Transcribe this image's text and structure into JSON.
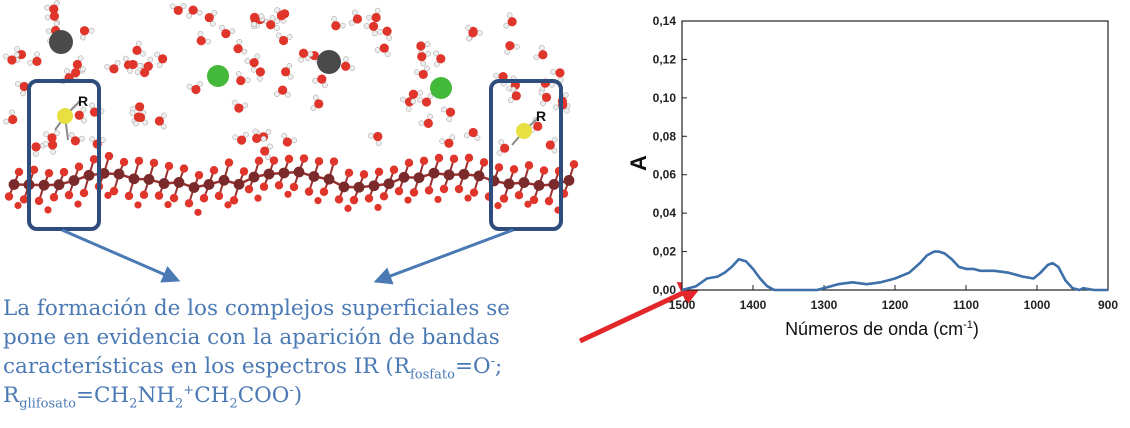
{
  "molecule": {
    "r_label": "R"
  },
  "caption": {
    "line1": "La formación de los complejos superficiales se",
    "line2": "pone en evidencia con la aparición de bandas",
    "line3_text": "características en los espectros IR  (R",
    "sub_fosfato": "fosfato",
    "eq_o": "=O",
    "minus1": "-",
    "semicolon": ";",
    "r_glif": "R",
    "sub_glifosato": "glifosato",
    "eq_ch2nh": "=CH",
    "sub_2a": "2",
    "nh": "NH",
    "sub_2b": "2",
    "plus": "+",
    "ch": "CH",
    "sub_2c": "2",
    "coo": "COO",
    "minus2": "-",
    "close": ")"
  },
  "chart_data": {
    "type": "line",
    "xlabel": "Números de onda (cm-1)",
    "xlabel_main": "Números de onda (cm",
    "xlabel_sup": "-1",
    "xlabel_close": ")",
    "ylabel": "A",
    "xlim": [
      1500,
      900
    ],
    "ylim": [
      0,
      0.14
    ],
    "x_ticks": [
      1500,
      1400,
      1300,
      1200,
      1100,
      1000,
      900
    ],
    "y_ticks": [
      "0,00",
      "0,02",
      "0,04",
      "0,06",
      "0,08",
      "0,10",
      "0,12",
      "0,14"
    ],
    "series": [
      {
        "color": "#3d6fa8",
        "x": [
          1500,
          1480,
          1465,
          1450,
          1440,
          1430,
          1420,
          1410,
          1400,
          1390,
          1380,
          1370,
          1360,
          1350,
          1330,
          1310,
          1300,
          1280,
          1260,
          1240,
          1220,
          1200,
          1180,
          1165,
          1155,
          1145,
          1138,
          1130,
          1120,
          1110,
          1100,
          1090,
          1080,
          1060,
          1040,
          1020,
          1005,
          995,
          985,
          978,
          970,
          960,
          950,
          940,
          935,
          920,
          900
        ],
        "y": [
          0.0,
          0.002,
          0.006,
          0.007,
          0.009,
          0.012,
          0.016,
          0.015,
          0.011,
          0.006,
          0.002,
          0.0,
          0.0,
          0.0,
          0.0,
          0.0,
          0.001,
          0.003,
          0.004,
          0.003,
          0.004,
          0.006,
          0.009,
          0.014,
          0.018,
          0.02,
          0.02,
          0.019,
          0.016,
          0.012,
          0.011,
          0.011,
          0.01,
          0.01,
          0.009,
          0.007,
          0.006,
          0.009,
          0.013,
          0.014,
          0.012,
          0.005,
          0.001,
          0.0,
          0.001,
          0.0,
          0.0
        ]
      }
    ]
  }
}
